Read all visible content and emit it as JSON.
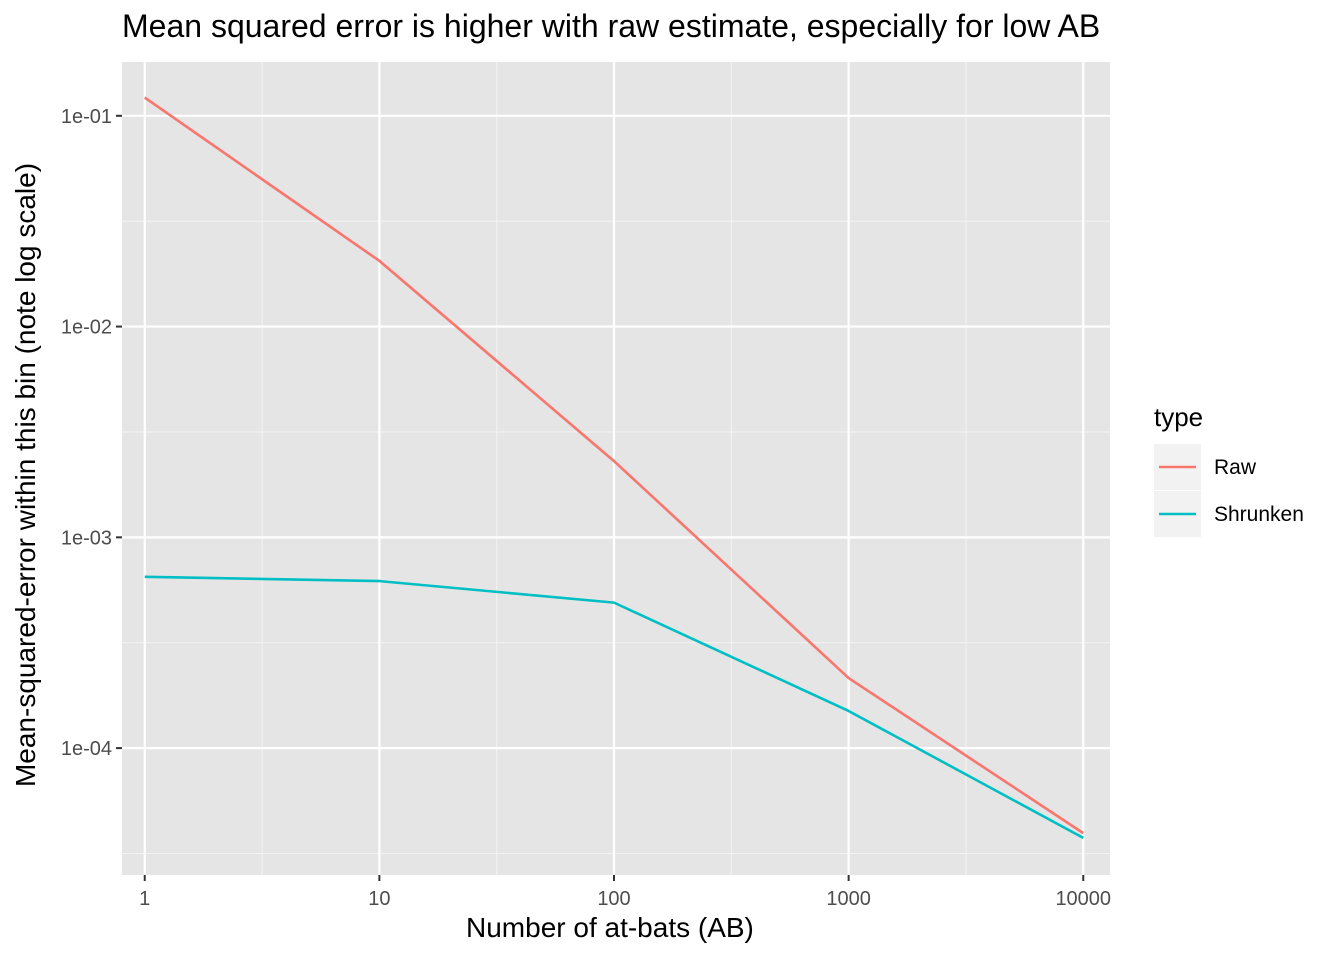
{
  "chart_data": {
    "type": "line",
    "title": "Mean squared error is higher with raw estimate, especially for low AB",
    "xlabel": "Number of at-bats (AB)",
    "ylabel": "Mean-squared-error within this bin (note log scale)",
    "x_scale": "log10",
    "y_scale": "log10",
    "x_ticks": [
      "1",
      "10",
      "100",
      "1000",
      "10000"
    ],
    "y_ticks": [
      "1e-04",
      "1e-03",
      "1e-02",
      "1e-01"
    ],
    "xlim": [
      0.8,
      13000
    ],
    "ylim": [
      2.5e-05,
      0.18
    ],
    "grid": true,
    "legend": {
      "title": "type",
      "position": "right"
    },
    "x": [
      1,
      10,
      100,
      1000,
      10000
    ],
    "series": [
      {
        "name": "Raw",
        "color": "#F8766D",
        "values": [
          0.122,
          0.0205,
          0.0023,
          0.000215,
          3.95e-05
        ]
      },
      {
        "name": "Shrunken",
        "color": "#00BFC4",
        "values": [
          0.00065,
          0.00062,
          0.00049,
          0.00015,
          3.75e-05
        ]
      }
    ]
  }
}
